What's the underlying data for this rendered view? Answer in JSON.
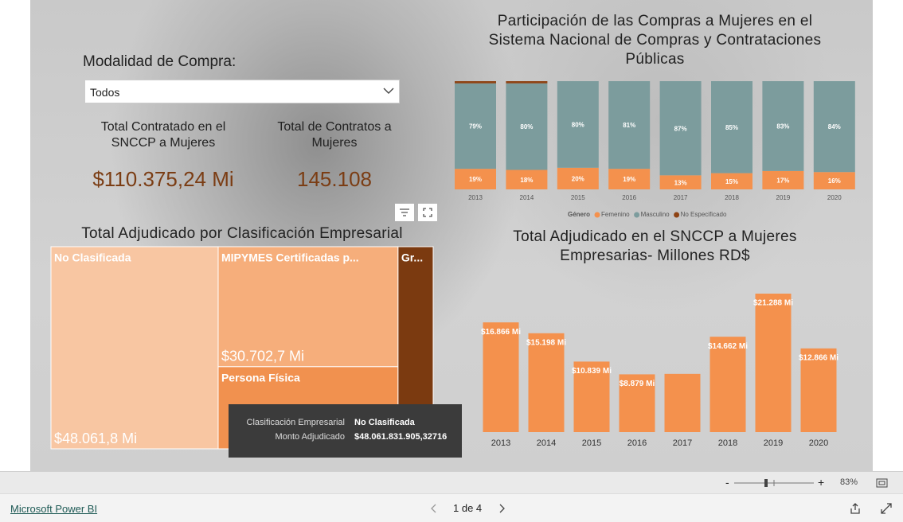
{
  "slicer": {
    "label": "Modalidad de Compra:",
    "selected": "Todos"
  },
  "kpis": [
    {
      "label": "Total Contratado en el SNCCP a Mujeres",
      "value": "$110.375,24 Mi"
    },
    {
      "label": "Total de Contratos a Mujeres",
      "value": "145.108"
    }
  ],
  "chart_data": [
    {
      "type": "stacked_bar_100",
      "title": "Participación de las Compras a Mujeres en el Sistema Nacional de Compras y Contrataciones Públicas",
      "categories": [
        "2013",
        "2014",
        "2015",
        "2016",
        "2017",
        "2018",
        "2019",
        "2020"
      ],
      "legend_title": "Género",
      "series": [
        {
          "name": "Femenino",
          "color": "#f4914d",
          "values": [
            19,
            18,
            20,
            19,
            13,
            15,
            17,
            16
          ],
          "value_labels": [
            "19%",
            "18%",
            "20%",
            "19%",
            "13%",
            "15%",
            "17%",
            "16%"
          ]
        },
        {
          "name": "Masculino",
          "color": "#7c9c9d",
          "values": [
            79,
            80,
            80,
            81,
            87,
            85,
            83,
            84
          ],
          "value_labels": [
            "79%",
            "80%",
            "80%",
            "81%",
            "87%",
            "85%",
            "83%",
            "84%"
          ]
        },
        {
          "name": "No Especificado",
          "color": "#8e4314",
          "values": [
            2,
            2,
            0,
            0,
            0,
            0,
            0,
            0
          ]
        }
      ]
    },
    {
      "type": "bar",
      "title": "Total Adjudicado en el SNCCP a Mujeres Empresarias- Millones RD$",
      "categories": [
        "2013",
        "2014",
        "2015",
        "2016",
        "2017",
        "2018",
        "2019",
        "2020"
      ],
      "values": [
        16866,
        15198,
        10839,
        8879,
        8950,
        14662,
        21288,
        12866
      ],
      "value_labels": [
        "$16.866 Mi",
        "$15.198 Mi",
        "$10.839 Mi",
        "$8.879 Mi",
        null,
        "$14.662 Mi",
        "$21.288 Mi",
        "$12.866 Mi"
      ],
      "color": "#f4914d"
    },
    {
      "type": "treemap",
      "title": "Total Adjudicado por Clasificación Empresarial",
      "categories": [
        "No Clasificada",
        "MIPYMES Certificadas p...",
        "Persona Física",
        "Gr..."
      ],
      "values": [
        48061.8,
        30702.7,
        21000,
        10100
      ],
      "value_labels": [
        "$48.061,8 Mi",
        "$30.702,7 Mi",
        null,
        null
      ],
      "colors": [
        "#f8c6a2",
        "#f6ae7b",
        "#f1914f",
        "#7b3a10"
      ]
    }
  ],
  "tooltip": {
    "rows": [
      {
        "label": "Clasificación Empresarial",
        "value": "No Clasificada"
      },
      {
        "label": "Monto Adjudicado",
        "value": "$48.061.831.905,32716"
      }
    ]
  },
  "footer": {
    "zoom_out": "-",
    "zoom_in": "+",
    "zoom": "83%",
    "brand": "Microsoft Power BI",
    "page": "1 de 4"
  }
}
